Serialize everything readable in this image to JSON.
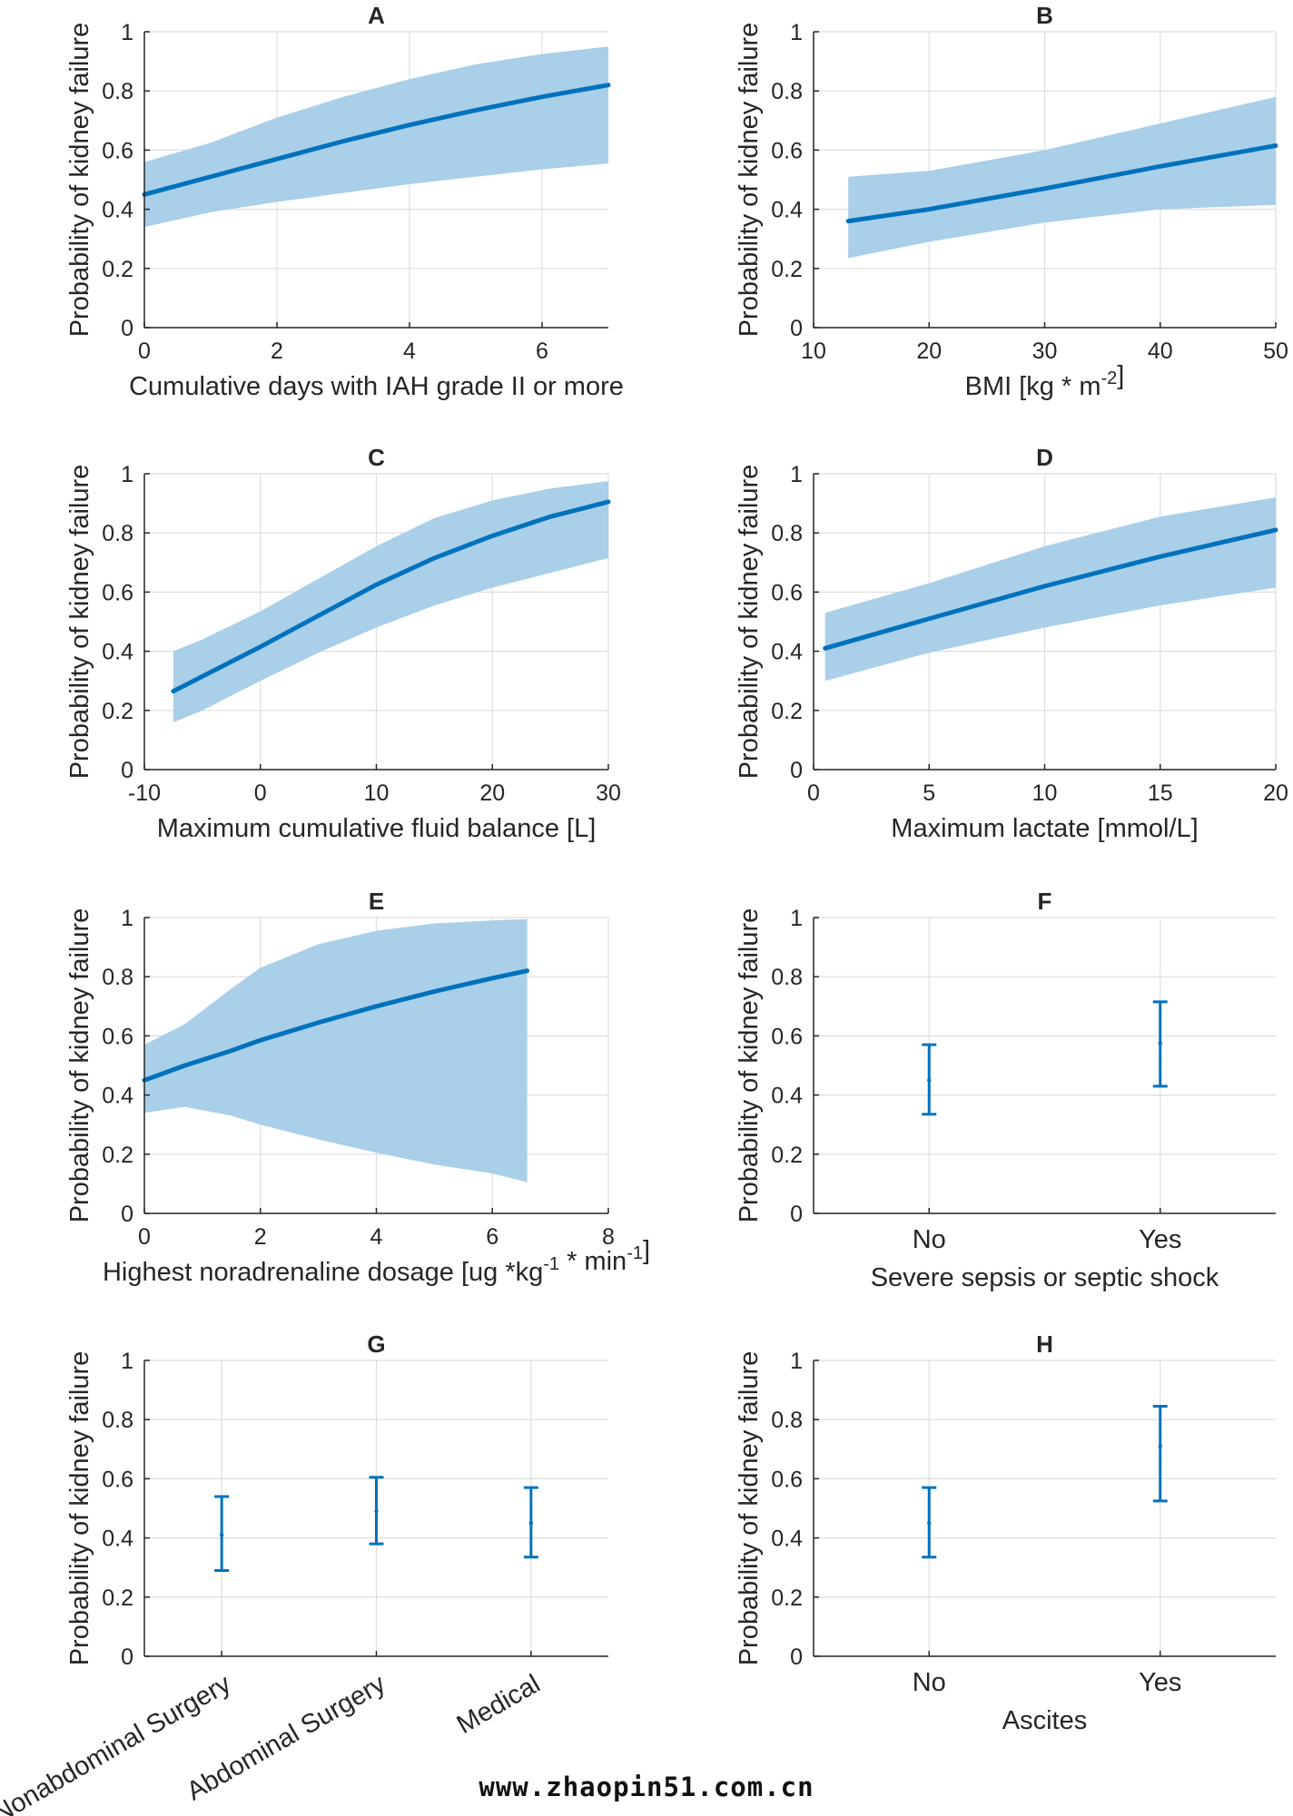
{
  "colors": {
    "line": "#0072bd",
    "band": "#a9cfe9",
    "grid": "#dedede",
    "axis": "#262626",
    "text": "#262626"
  },
  "ylabel": "Probability of kidney failure",
  "watermark": "www.zhaopin51.com.cn",
  "chart_data": [
    {
      "panel": "A",
      "type": "line",
      "title": "A",
      "xlabel": "Cumulative days with IAH grade II or more",
      "xlim": [
        0,
        7
      ],
      "ylim": [
        0,
        1
      ],
      "xticks": [
        0,
        2,
        4,
        6
      ],
      "xtick_labels": [
        "0",
        "2",
        "4",
        "6"
      ],
      "yticks": [
        0,
        0.2,
        0.4,
        0.6,
        0.8,
        1
      ],
      "ytick_labels": [
        "0",
        "0.2",
        "0.4",
        "0.6",
        "0.8",
        "1"
      ],
      "x": [
        0,
        1,
        2,
        3,
        4,
        5,
        6,
        7
      ],
      "y": [
        0.45,
        0.51,
        0.57,
        0.63,
        0.685,
        0.735,
        0.78,
        0.82
      ],
      "lower": [
        0.34,
        0.39,
        0.425,
        0.455,
        0.485,
        0.51,
        0.535,
        0.555
      ],
      "upper": [
        0.56,
        0.625,
        0.71,
        0.78,
        0.84,
        0.89,
        0.925,
        0.95
      ]
    },
    {
      "panel": "B",
      "type": "line",
      "title": "B",
      "xlabel": "BMI [kg * m",
      "xlabel_sup": "-2",
      "xlabel_after": "]",
      "xlim": [
        10,
        50
      ],
      "ylim": [
        0,
        1
      ],
      "xticks": [
        10,
        20,
        30,
        40,
        50
      ],
      "xtick_labels": [
        "10",
        "20",
        "30",
        "40",
        "50"
      ],
      "yticks": [
        0,
        0.2,
        0.4,
        0.6,
        0.8,
        1
      ],
      "ytick_labels": [
        "0",
        "0.2",
        "0.4",
        "0.6",
        "0.8",
        "1"
      ],
      "x": [
        13,
        20,
        30,
        40,
        50
      ],
      "y": [
        0.36,
        0.4,
        0.47,
        0.545,
        0.615
      ],
      "lower": [
        0.235,
        0.29,
        0.355,
        0.4,
        0.415
      ],
      "upper": [
        0.51,
        0.53,
        0.6,
        0.69,
        0.78
      ]
    },
    {
      "panel": "C",
      "type": "line",
      "title": "C",
      "xlabel": "Maximum cumulative fluid balance [L]",
      "xlim": [
        -10,
        30
      ],
      "ylim": [
        0,
        1
      ],
      "xticks": [
        -10,
        0,
        10,
        20,
        30
      ],
      "xtick_labels": [
        "-10",
        "0",
        "10",
        "20",
        "30"
      ],
      "yticks": [
        0,
        0.2,
        0.4,
        0.6,
        0.8,
        1
      ],
      "ytick_labels": [
        "0",
        "0.2",
        "0.4",
        "0.6",
        "0.8",
        "1"
      ],
      "x": [
        -7.5,
        -5,
        0,
        5,
        10,
        15,
        20,
        25,
        30
      ],
      "y": [
        0.265,
        0.315,
        0.415,
        0.52,
        0.625,
        0.715,
        0.79,
        0.855,
        0.905
      ],
      "lower": [
        0.16,
        0.2,
        0.3,
        0.395,
        0.48,
        0.555,
        0.615,
        0.665,
        0.715
      ],
      "upper": [
        0.4,
        0.44,
        0.535,
        0.645,
        0.755,
        0.85,
        0.91,
        0.95,
        0.975
      ]
    },
    {
      "panel": "D",
      "type": "line",
      "title": "D",
      "xlabel": "Maximum lactate [mmol/L]",
      "xlim": [
        0,
        20
      ],
      "ylim": [
        0,
        1
      ],
      "xticks": [
        0,
        5,
        10,
        15,
        20
      ],
      "xtick_labels": [
        "0",
        "5",
        "10",
        "15",
        "20"
      ],
      "yticks": [
        0,
        0.2,
        0.4,
        0.6,
        0.8,
        1
      ],
      "ytick_labels": [
        "0",
        "0.2",
        "0.4",
        "0.6",
        "0.8",
        "1"
      ],
      "x": [
        0.5,
        5,
        10,
        15,
        20
      ],
      "y": [
        0.41,
        0.51,
        0.62,
        0.72,
        0.81
      ],
      "lower": [
        0.3,
        0.395,
        0.48,
        0.555,
        0.615
      ],
      "upper": [
        0.53,
        0.63,
        0.755,
        0.855,
        0.92
      ]
    },
    {
      "panel": "E",
      "type": "line",
      "title": "E",
      "xlabel": "Highest noradrenaline dosage [ug *kg",
      "xlabel_sup": "-1",
      "xlabel_mid": " * min",
      "xlabel_sup2": "-1",
      "xlabel_after": "]",
      "xlim": [
        0,
        8
      ],
      "ylim": [
        0,
        1
      ],
      "xticks": [
        0,
        2,
        4,
        6,
        8
      ],
      "xtick_labels": [
        "0",
        "2",
        "4",
        "6",
        "8"
      ],
      "yticks": [
        0,
        0.2,
        0.4,
        0.6,
        0.8,
        1
      ],
      "ytick_labels": [
        "0",
        "0.2",
        "0.4",
        "0.6",
        "0.8",
        "1"
      ],
      "x": [
        0,
        0.7,
        1.5,
        2,
        3,
        4,
        5,
        6,
        6.6
      ],
      "y": [
        0.45,
        0.5,
        0.55,
        0.585,
        0.645,
        0.7,
        0.75,
        0.795,
        0.82
      ],
      "lower": [
        0.34,
        0.36,
        0.33,
        0.3,
        0.25,
        0.205,
        0.165,
        0.135,
        0.105
      ],
      "upper": [
        0.57,
        0.64,
        0.76,
        0.83,
        0.91,
        0.955,
        0.98,
        0.99,
        0.995
      ]
    },
    {
      "panel": "F",
      "type": "errorbar",
      "title": "F",
      "xlabel": "Severe sepsis or septic shock",
      "categories": [
        "No",
        "Yes"
      ],
      "ylim": [
        0,
        1
      ],
      "yticks": [
        0,
        0.2,
        0.4,
        0.6,
        0.8,
        1
      ],
      "ytick_labels": [
        "0",
        "0.2",
        "0.4",
        "0.6",
        "0.8",
        "1"
      ],
      "y": [
        0.45,
        0.575
      ],
      "lower": [
        0.335,
        0.43
      ],
      "upper": [
        0.57,
        0.715
      ]
    },
    {
      "panel": "G",
      "type": "errorbar",
      "title": "G",
      "xlabel": "",
      "categories": [
        "Nonabdominal Surgery",
        "Abdominal Surgery",
        "Medical"
      ],
      "ylim": [
        0,
        1
      ],
      "yticks": [
        0,
        0.2,
        0.4,
        0.6,
        0.8,
        1
      ],
      "ytick_labels": [
        "0",
        "0.2",
        "0.4",
        "0.6",
        "0.8",
        "1"
      ],
      "y": [
        0.41,
        0.49,
        0.45
      ],
      "lower": [
        0.29,
        0.38,
        0.335
      ],
      "upper": [
        0.54,
        0.605,
        0.57
      ]
    },
    {
      "panel": "H",
      "type": "errorbar",
      "title": "H",
      "xlabel": "Ascites",
      "categories": [
        "No",
        "Yes"
      ],
      "ylim": [
        0,
        1
      ],
      "yticks": [
        0,
        0.2,
        0.4,
        0.6,
        0.8,
        1
      ],
      "ytick_labels": [
        "0",
        "0.2",
        "0.4",
        "0.6",
        "0.8",
        "1"
      ],
      "y": [
        0.45,
        0.71
      ],
      "lower": [
        0.335,
        0.525
      ],
      "upper": [
        0.57,
        0.845
      ]
    }
  ]
}
